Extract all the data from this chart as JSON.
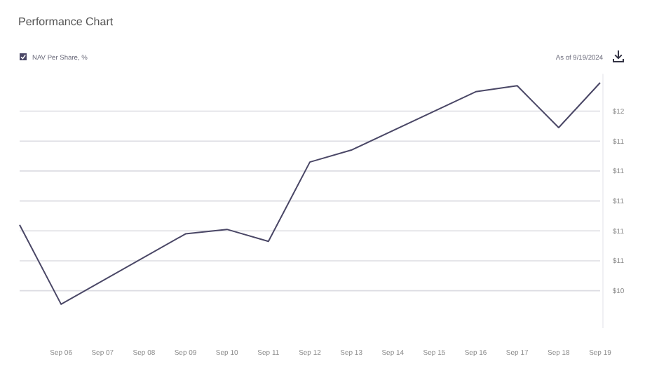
{
  "chart_data": {
    "type": "line",
    "title": "Performance Chart",
    "annotations": [
      "As of 9/19/2024"
    ],
    "x": [
      "2024-09-05",
      "2024-09-06",
      "2024-09-09",
      "2024-09-10",
      "2024-09-11",
      "2024-09-12",
      "2024-09-13",
      "2024-09-16",
      "2024-09-17",
      "2024-09-18",
      "2024-09-19"
    ],
    "series": [
      {
        "name": "NAV Per Share, %",
        "color": "#4a4766",
        "values": [
          10.84,
          10.31,
          10.78,
          10.81,
          10.73,
          11.26,
          11.34,
          11.73,
          11.77,
          11.49,
          11.79
        ]
      }
    ],
    "xlim": [
      "2024-09-05",
      "2024-09-19"
    ],
    "xticks": [
      {
        "value": "2024-09-06",
        "label": "Sep 06"
      },
      {
        "value": "2024-09-07",
        "label": "Sep 07"
      },
      {
        "value": "2024-09-08",
        "label": "Sep 08"
      },
      {
        "value": "2024-09-09",
        "label": "Sep 09"
      },
      {
        "value": "2024-09-10",
        "label": "Sep 10"
      },
      {
        "value": "2024-09-11",
        "label": "Sep 11"
      },
      {
        "value": "2024-09-12",
        "label": "Sep 12"
      },
      {
        "value": "2024-09-13",
        "label": "Sep 13"
      },
      {
        "value": "2024-09-14",
        "label": "Sep 14"
      },
      {
        "value": "2024-09-15",
        "label": "Sep 15"
      },
      {
        "value": "2024-09-16",
        "label": "Sep 16"
      },
      {
        "value": "2024-09-17",
        "label": "Sep 17"
      },
      {
        "value": "2024-09-18",
        "label": "Sep 18"
      },
      {
        "value": "2024-09-19",
        "label": "Sep 19"
      }
    ],
    "ylim": [
      10.15,
      11.85
    ],
    "yticks": [
      {
        "value": 10.4,
        "label": "$10"
      },
      {
        "value": 10.6,
        "label": "$11"
      },
      {
        "value": 10.8,
        "label": "$11"
      },
      {
        "value": 11.0,
        "label": "$11"
      },
      {
        "value": 11.2,
        "label": "$11"
      },
      {
        "value": 11.4,
        "label": "$11"
      },
      {
        "value": 11.6,
        "label": "$12"
      }
    ],
    "grid": "y",
    "legend": "top left",
    "marker": "none",
    "line_style": "solid"
  }
}
